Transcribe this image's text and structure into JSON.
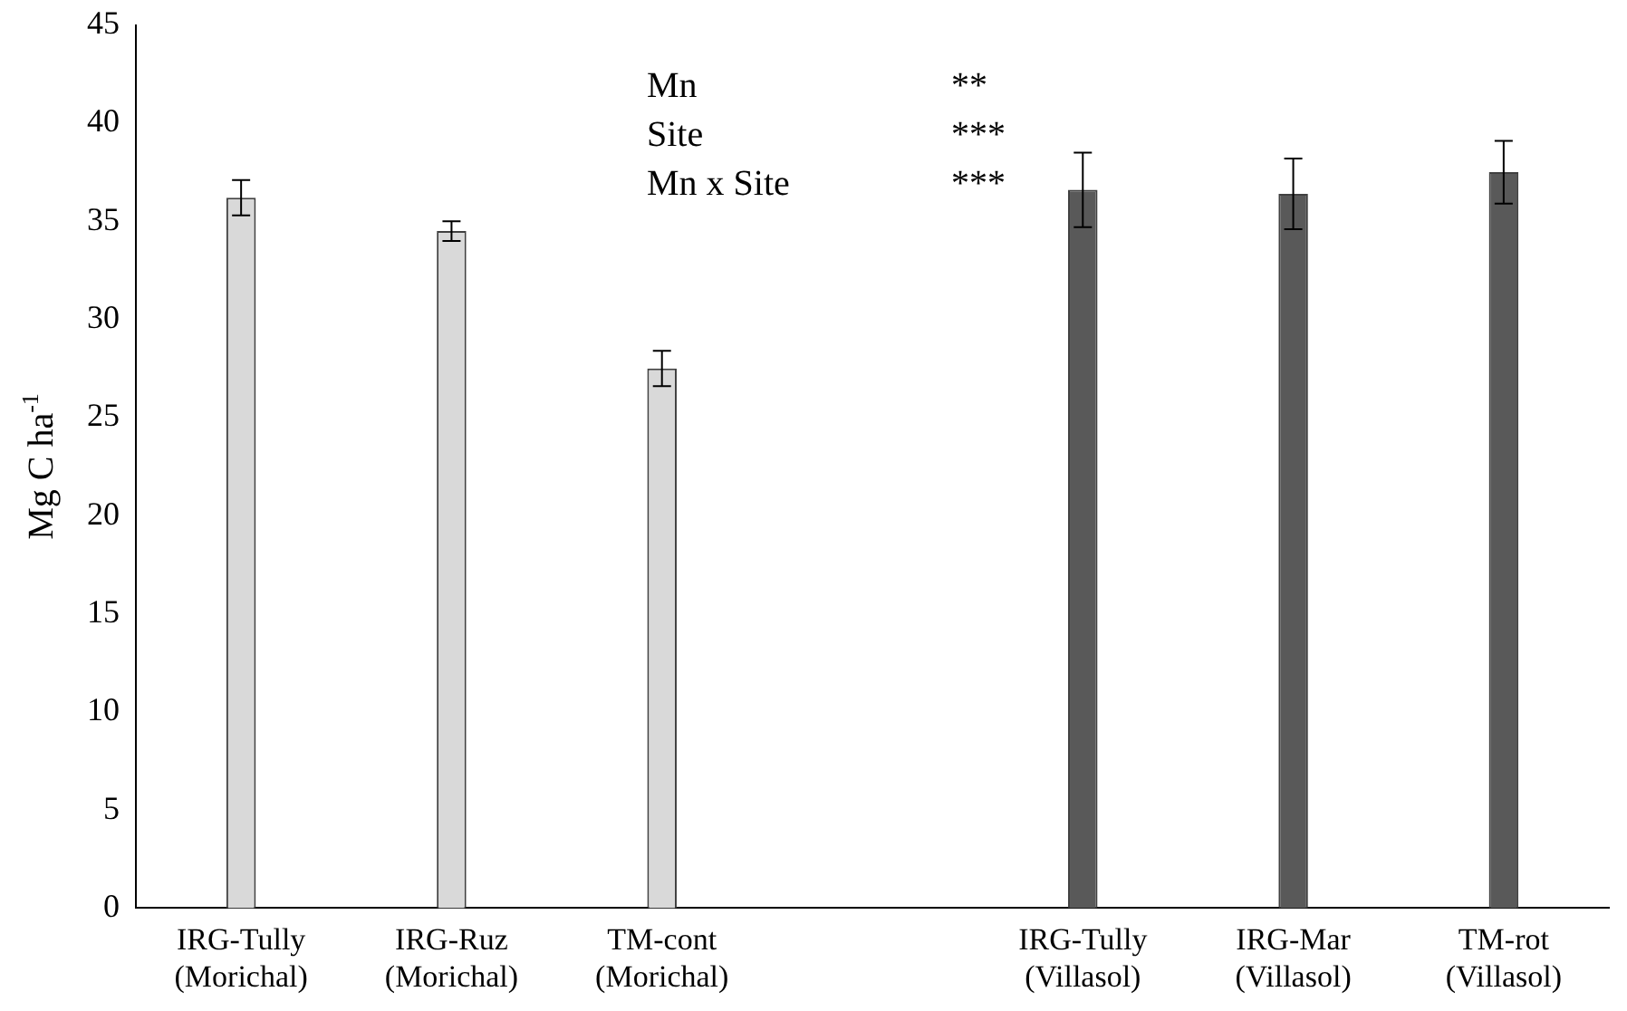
{
  "chart_data": {
    "type": "bar",
    "ylabel": "Mg C ha$^{-1}$",
    "categories": [
      "IRG-Tully\n(Morichal)",
      "IRG-Ruz\n(Morichal)",
      "TM-cont\n(Morichal)",
      null,
      "IRG-Tully\n(Villasol)",
      "IRG-Mar\n(Villasol)",
      "TM-rot\n(Villasol)"
    ],
    "values": [
      36.2,
      34.5,
      27.5,
      null,
      36.6,
      36.4,
      37.5
    ],
    "errors": [
      0.9,
      0.5,
      0.9,
      null,
      1.9,
      1.8,
      1.6
    ],
    "colors": [
      "#d9d9d9",
      "#d9d9d9",
      "#d9d9d9",
      "#d9d9d9",
      "#595959",
      "#595959",
      "#595959"
    ],
    "ylim": [
      0,
      45
    ],
    "yticks": [
      0,
      5,
      10,
      15,
      20,
      25,
      30,
      35,
      40,
      45
    ],
    "grid": false,
    "legend": false,
    "annotations": [
      "Mn",
      "**",
      "Site",
      "***",
      "Mn x Site",
      "***"
    ]
  }
}
